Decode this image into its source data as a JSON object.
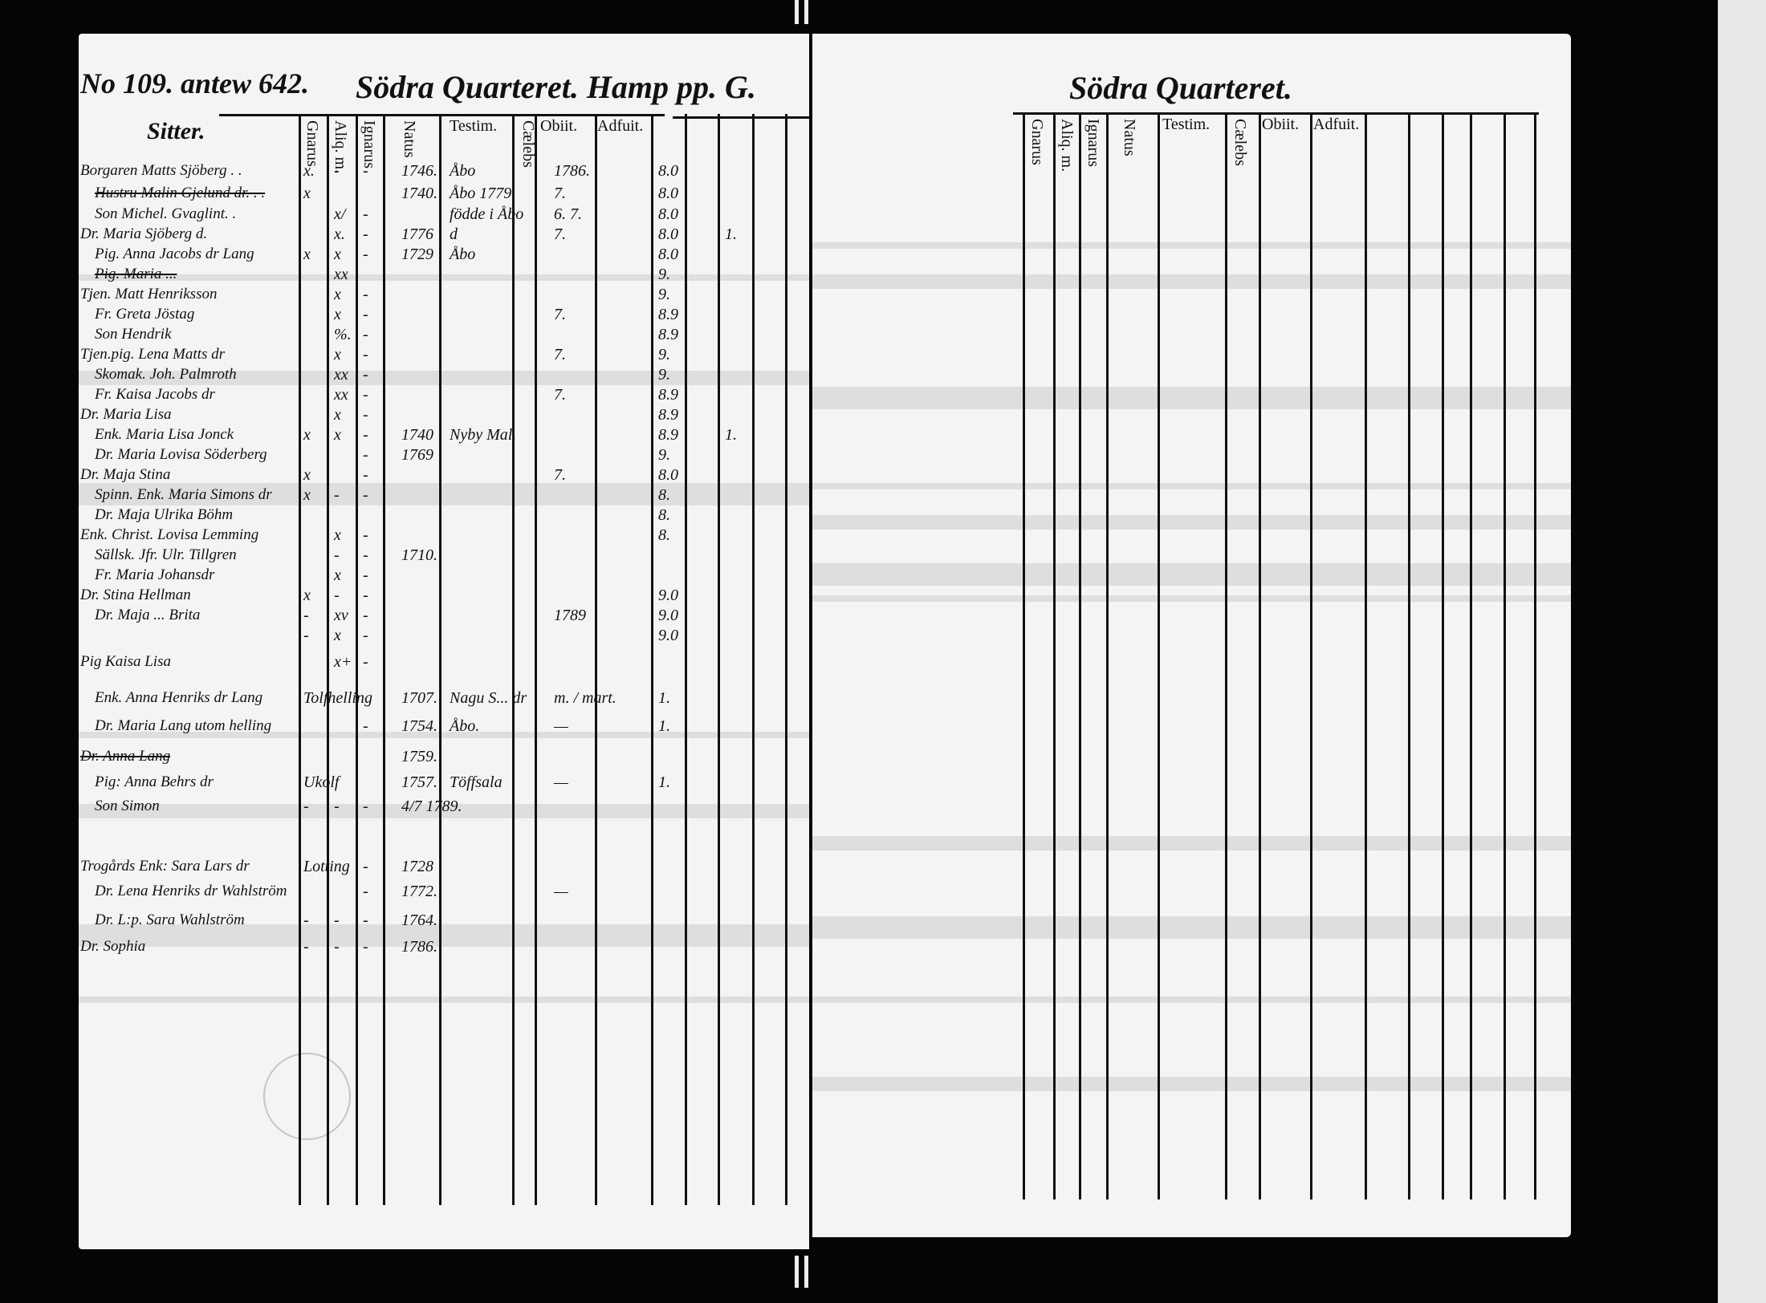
{
  "left_page": {
    "number_label": "No 109. antew 642.",
    "title": "Södra Quarteret. Hamp pp. G.",
    "section_label": "Sitter.",
    "columns": [
      "Gnarus",
      "Aliq. m.",
      "Ignarus",
      "Natus",
      "Testim.",
      "Cælebs",
      "Obiit.",
      "Adfuit."
    ],
    "rows": [
      {
        "name": "Borgaren Matts Sjöberg . .",
        "gn": "x.",
        "al": "-",
        "ig": "-",
        "natus": "1746.",
        "testim": "Åbo",
        "obiit": "1786.",
        "adfuit": "8.0",
        "extra": "",
        "struck": false
      },
      {
        "name": "Hustru Malin Gjelund dr. . .",
        "gn": "x",
        "al": "",
        "ig": "",
        "natus": "1740.",
        "testim": "Åbo 1779",
        "obiit": "7.",
        "adfuit": "8.0",
        "extra": "",
        "struck": true
      },
      {
        "name": "Son Michel. Gvaglint. .",
        "gn": "",
        "al": "x/",
        "ig": "-",
        "natus": "",
        "testim": "födde i Åbo",
        "obiit": "6. 7.",
        "adfuit": "8.0",
        "extra": "",
        "struck": false
      },
      {
        "name": "Dr. Maria Sjöberg d.",
        "gn": "",
        "al": "x.",
        "ig": "-",
        "natus": "1776",
        "testim": "d",
        "obiit": "7.",
        "adfuit": "8.0",
        "extra": "1.",
        "struck": false
      },
      {
        "name": "Pig. Anna Jacobs dr Lang",
        "gn": "x",
        "al": "x",
        "ig": "-",
        "natus": "1729",
        "testim": "Åbo",
        "obiit": "",
        "adfuit": "8.0",
        "extra": "",
        "struck": false
      },
      {
        "name": "Pig. Maria ...",
        "gn": "",
        "al": "xx",
        "ig": "",
        "natus": "",
        "testim": "",
        "obiit": "",
        "adfuit": "9.",
        "extra": "",
        "struck": true
      },
      {
        "name": "Tjen. Matt Henriksson",
        "gn": "",
        "al": "x",
        "ig": "-",
        "natus": "",
        "testim": "",
        "obiit": "",
        "adfuit": "9.",
        "extra": "",
        "struck": false
      },
      {
        "name": "Fr. Greta Jöstag",
        "gn": "",
        "al": "x",
        "ig": "-",
        "natus": "",
        "testim": "",
        "obiit": "7.",
        "adfuit": "8.9",
        "extra": "",
        "struck": false
      },
      {
        "name": "Son Hendrik",
        "gn": "",
        "al": "%.",
        "ig": "-",
        "natus": "",
        "testim": "",
        "obiit": "",
        "adfuit": "8.9",
        "extra": "",
        "struck": false
      },
      {
        "name": "Tjen.pig. Lena Matts dr",
        "gn": "",
        "al": "x",
        "ig": "-",
        "natus": "",
        "testim": "",
        "obiit": "7.",
        "adfuit": "9.",
        "extra": "",
        "struck": false
      },
      {
        "name": "Skomak. Joh. Palmroth",
        "gn": "",
        "al": "xx",
        "ig": "-",
        "natus": "",
        "testim": "",
        "obiit": "",
        "adfuit": "9.",
        "extra": "",
        "struck": false
      },
      {
        "name": "Fr. Kaisa Jacobs dr",
        "gn": "",
        "al": "xx",
        "ig": "-",
        "natus": "",
        "testim": "",
        "obiit": "7.",
        "adfuit": "8.9",
        "extra": "",
        "struck": false
      },
      {
        "name": "Dr. Maria Lisa",
        "gn": "",
        "al": "x",
        "ig": "-",
        "natus": "",
        "testim": "",
        "obiit": "",
        "adfuit": "8.9",
        "extra": "",
        "struck": false
      },
      {
        "name": "Enk. Maria Lisa Jonck",
        "gn": "x",
        "al": "x",
        "ig": "-",
        "natus": "1740",
        "testim": "Nyby Mal.",
        "obiit": "",
        "adfuit": "8.9",
        "extra": "1.",
        "struck": false
      },
      {
        "name": "Dr. Maria Lovisa Söderberg",
        "gn": "",
        "al": "",
        "ig": "-",
        "natus": "1769",
        "testim": "",
        "obiit": "",
        "adfuit": "9.",
        "extra": "",
        "struck": false
      },
      {
        "name": "Dr. Maja Stina",
        "gn": "x",
        "al": "",
        "ig": "-",
        "natus": "",
        "testim": "",
        "obiit": "7.",
        "adfuit": "8.0",
        "extra": "",
        "struck": false
      },
      {
        "name": "Spinn. Enk. Maria Simons dr",
        "gn": "x",
        "al": "-",
        "ig": "-",
        "natus": "",
        "testim": "",
        "obiit": "",
        "adfuit": "8.",
        "extra": "",
        "struck": false
      },
      {
        "name": "Dr. Maja Ulrika Böhm",
        "gn": "",
        "al": "",
        "ig": "",
        "natus": "",
        "testim": "",
        "obiit": "",
        "adfuit": "8.",
        "extra": "",
        "struck": false
      },
      {
        "name": "Enk. Christ. Lovisa Lemming",
        "gn": "",
        "al": "x",
        "ig": "-",
        "natus": "",
        "testim": "",
        "obiit": "",
        "adfuit": "8.",
        "extra": "",
        "struck": false
      },
      {
        "name": "Sällsk. Jfr. Ulr. Tillgren",
        "gn": "",
        "al": "-",
        "ig": "-",
        "natus": "1710.",
        "testim": "",
        "obiit": "",
        "adfuit": "",
        "extra": "",
        "struck": false
      },
      {
        "name": "Fr. Maria Johansdr",
        "gn": "",
        "al": "x",
        "ig": "-",
        "natus": "",
        "testim": "",
        "obiit": "",
        "adfuit": "",
        "extra": "",
        "struck": false
      },
      {
        "name": "Dr. Stina Hellman",
        "gn": "x",
        "al": "-",
        "ig": "-",
        "natus": "",
        "testim": "",
        "obiit": "",
        "adfuit": "9.0",
        "extra": "",
        "struck": false
      },
      {
        "name": "Dr. Maja ... Brita",
        "gn": "-",
        "al": "xv",
        "ig": "-",
        "natus": "",
        "testim": "",
        "obiit": "1789",
        "adfuit": "9.0",
        "extra": "",
        "struck": false
      },
      {
        "name": "",
        "gn": "-",
        "al": "x",
        "ig": "-",
        "natus": "",
        "testim": "",
        "obiit": "",
        "adfuit": "9.0",
        "extra": "",
        "struck": false
      },
      {
        "name": "Pig Kaisa Lisa",
        "gn": "",
        "al": "x+",
        "ig": "-",
        "natus": "",
        "testim": "",
        "obiit": "",
        "adfuit": "",
        "extra": "",
        "struck": false
      },
      {
        "name": "Enk. Anna Henriks dr Lang",
        "gn": "Tolfhelling",
        "al": "",
        "ig": "",
        "natus": "1707.",
        "testim": "Nagu S... dr",
        "obiit": "m. / mart.",
        "adfuit": "1.",
        "extra": "",
        "struck": false
      },
      {
        "name": "Dr. Maria Lang utom helling",
        "gn": "",
        "al": "",
        "ig": "-",
        "natus": "1754.",
        "testim": "Åbo.",
        "obiit": "—",
        "adfuit": "1.",
        "extra": "",
        "struck": false
      },
      {
        "name": "Dr. Anna Lang",
        "gn": "",
        "al": "",
        "ig": "",
        "natus": "1759.",
        "testim": "",
        "obiit": "",
        "adfuit": "",
        "extra": "",
        "struck": true
      },
      {
        "name": "Pig: Anna Behrs dr",
        "gn": "Ukolf",
        "al": "",
        "ig": "",
        "natus": "1757.",
        "testim": "Töffsala",
        "obiit": "—",
        "adfuit": "1.",
        "extra": "",
        "struck": false
      },
      {
        "name": "Son Simon",
        "gn": "-",
        "al": "-",
        "ig": "-",
        "natus": "4/7 1789.",
        "testim": "",
        "obiit": "",
        "adfuit": "",
        "extra": "",
        "struck": false
      },
      {
        "name": "Trogårds Enk: Sara Lars dr",
        "gn": "Lotting",
        "al": "",
        "ig": "-",
        "natus": "1728",
        "testim": "",
        "obiit": "",
        "adfuit": "",
        "extra": "",
        "struck": false
      },
      {
        "name": "Dr. Lena Henriks dr Wahlström",
        "gn": "",
        "al": "",
        "ig": "-",
        "natus": "1772.",
        "testim": "",
        "obiit": "—",
        "adfuit": "",
        "extra": "",
        "struck": false
      },
      {
        "name": "Dr. L:p. Sara Wahlström",
        "gn": "-",
        "al": "-",
        "ig": "-",
        "natus": "1764.",
        "testim": "",
        "obiit": "",
        "adfuit": "",
        "extra": "",
        "struck": false
      },
      {
        "name": "Dr. Sophia",
        "gn": "-",
        "al": "-",
        "ig": "-",
        "natus": "1786.",
        "testim": "",
        "obiit": "",
        "adfuit": "",
        "extra": "",
        "struck": false
      }
    ]
  },
  "right_page": {
    "title": "Södra Quarteret.",
    "columns": [
      "Gnarus",
      "Aliq. m.",
      "Ignarus",
      "Natus",
      "Testim.",
      "Cælebs",
      "Obiit.",
      "Adfuit."
    ]
  }
}
